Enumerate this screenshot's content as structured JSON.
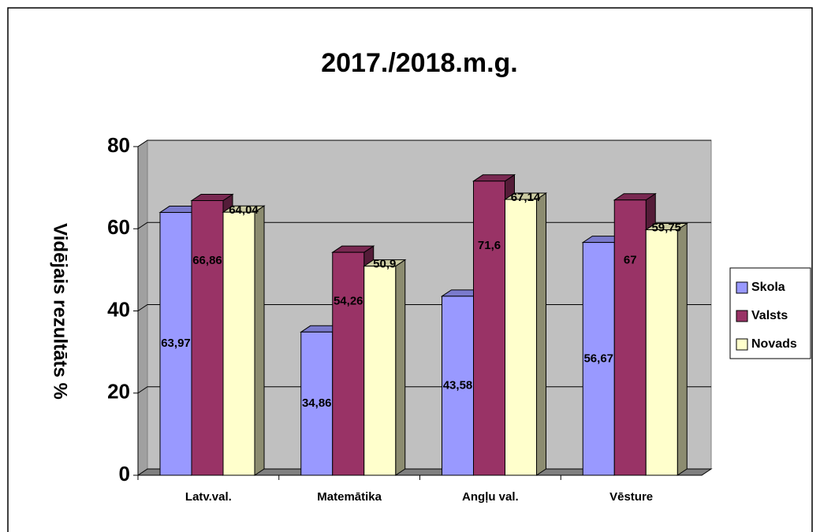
{
  "chart_data": {
    "type": "bar3d",
    "title": "2017./2018.m.g.",
    "y_label": "Vidējais rezultāts %",
    "categories": [
      "Latv.val.",
      "Matemātika",
      "Angļu val.",
      "Vēsture"
    ],
    "series": [
      {
        "name": "Skola",
        "color": "#9999ff",
        "values": [
          63.97,
          34.86,
          43.58,
          56.67
        ],
        "value_labels": [
          "63,97",
          "34,86",
          "43,58",
          "56,67"
        ]
      },
      {
        "name": "Valsts",
        "color": "#993366",
        "values": [
          66.86,
          54.26,
          71.6,
          67
        ],
        "value_labels": [
          "66,86",
          "54,26",
          "71,6",
          "67"
        ]
      },
      {
        "name": "Novads",
        "color": "#ffffcc",
        "values": [
          64.04,
          50.9,
          67.14,
          59.75
        ],
        "value_labels": [
          "64,04",
          "50,9",
          "67,14",
          "59,75"
        ]
      }
    ],
    "ylim": [
      0,
      80
    ],
    "yticks": [
      0,
      20,
      40,
      60,
      80
    ],
    "grid": true,
    "legend": "right"
  }
}
